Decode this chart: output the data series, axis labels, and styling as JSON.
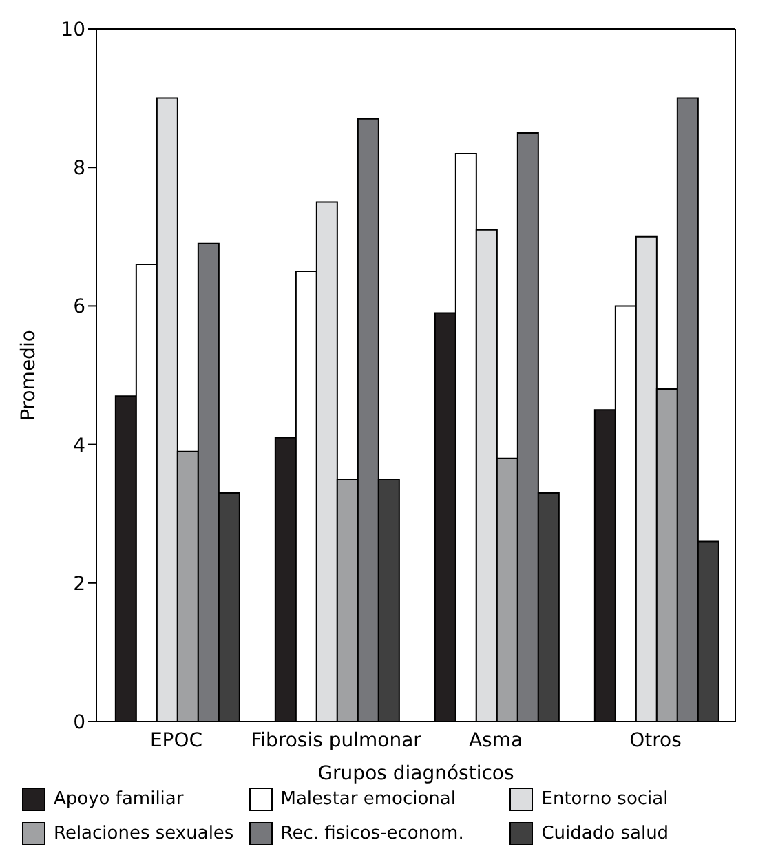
{
  "chart_data": {
    "type": "bar",
    "xlabel": "Grupos diagnósticos",
    "ylabel": "Promedio",
    "categories": [
      "EPOC",
      "Fibrosis pulmonar",
      "Asma",
      "Otros"
    ],
    "series": [
      {
        "name": "Apoyo familiar",
        "color": "#231f20",
        "values": [
          4.7,
          4.1,
          5.9,
          4.5
        ]
      },
      {
        "name": "Malestar emocional",
        "color": "#ffffff",
        "values": [
          6.6,
          6.5,
          8.2,
          6.0
        ]
      },
      {
        "name": "Entorno social",
        "color": "#dcdddf",
        "values": [
          9.0,
          7.5,
          7.1,
          7.0
        ]
      },
      {
        "name": "Relaciones sexuales",
        "color": "#a0a1a3",
        "values": [
          3.9,
          3.5,
          3.8,
          4.8
        ]
      },
      {
        "name": "Rec. fisicos-econom.",
        "color": "#76777b",
        "values": [
          6.9,
          8.7,
          8.5,
          9.0
        ]
      },
      {
        "name": "Cuidado salud",
        "color": "#404040",
        "values": [
          3.3,
          3.5,
          3.3,
          2.6
        ]
      }
    ],
    "ylim": [
      0,
      10
    ],
    "yticks": [
      0,
      2,
      4,
      6,
      8,
      10
    ],
    "grid": false,
    "legend": "bottom"
  }
}
